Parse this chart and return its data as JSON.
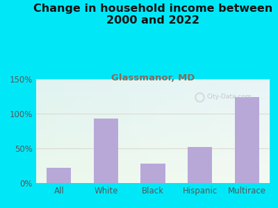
{
  "title": "Change in household income between\n2000 and 2022",
  "subtitle": "Glassmanor, MD",
  "categories": [
    "All",
    "White",
    "Black",
    "Hispanic",
    "Multirace"
  ],
  "values": [
    22,
    93,
    28,
    52,
    124
  ],
  "bar_color": "#b8a8d8",
  "background_outer": "#00e8f8",
  "ylim": [
    0,
    150
  ],
  "yticks": [
    0,
    50,
    100,
    150
  ],
  "ytick_labels": [
    "0%",
    "50%",
    "100%",
    "150%"
  ],
  "title_fontsize": 11.5,
  "subtitle_fontsize": 9.5,
  "subtitle_color": "#8b6a5a",
  "tick_label_fontsize": 8.5,
  "watermark": "City-Data.com",
  "watermark_color": "#c0c0cc",
  "grid_color": "#d8d8cc",
  "title_color": "#111111"
}
